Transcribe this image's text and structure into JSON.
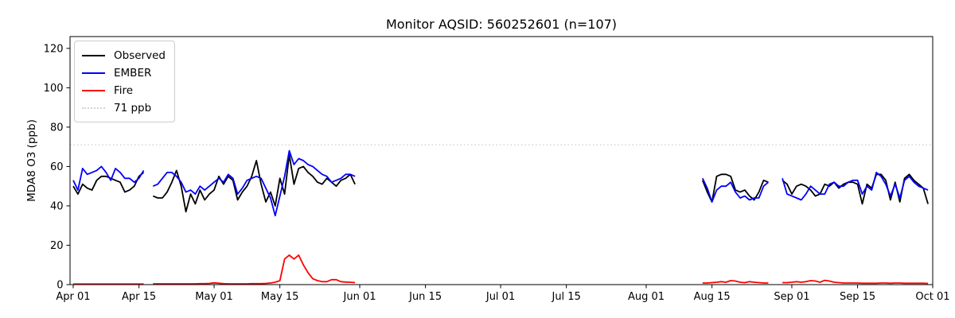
{
  "chart_data": {
    "type": "line",
    "title": "Monitor AQSID: 560252601 (n=107)",
    "ylabel": "MDA8 O3 (ppb)",
    "xlabel": "",
    "n_points": 107,
    "ylim": [
      0,
      126
    ],
    "yticks": [
      0,
      20,
      40,
      60,
      80,
      100,
      120
    ],
    "x_axis_note": "days are offsets from Apr 01; axis spans Apr 01 to Oct 01",
    "xticks": [
      {
        "day": 0,
        "label": "Apr 01"
      },
      {
        "day": 14,
        "label": "Apr 15"
      },
      {
        "day": 30,
        "label": "May 01"
      },
      {
        "day": 44,
        "label": "May 15"
      },
      {
        "day": 61,
        "label": "Jun 01"
      },
      {
        "day": 75,
        "label": "Jun 15"
      },
      {
        "day": 91,
        "label": "Jul 01"
      },
      {
        "day": 105,
        "label": "Jul 15"
      },
      {
        "day": 122,
        "label": "Aug 01"
      },
      {
        "day": 136,
        "label": "Aug 15"
      },
      {
        "day": 153,
        "label": "Sep 01"
      },
      {
        "day": 167,
        "label": "Sep 15"
      },
      {
        "day": 183,
        "label": "Oct 01"
      }
    ],
    "threshold_line": {
      "value": 71,
      "label": "71 ppb",
      "color": "#d3d3d3",
      "linestyle": "dotted"
    },
    "legend": {
      "position": "upper left",
      "entries": [
        {
          "label": "Observed",
          "color": "#000000",
          "style": "solid"
        },
        {
          "label": "EMBER",
          "color": "#0000ff",
          "style": "solid"
        },
        {
          "label": "Fire",
          "color": "#ff0000",
          "style": "solid"
        },
        {
          "label": "71 ppb",
          "color": "#d3d3d3",
          "style": "dotted"
        }
      ]
    },
    "series": [
      {
        "name": "Observed",
        "color": "#000000",
        "segments": [
          {
            "start_day": 0,
            "values": [
              50,
              46,
              51,
              49,
              48,
              53,
              55,
              55,
              54,
              53,
              52,
              47,
              48,
              50,
              55,
              57
            ]
          },
          {
            "start_day": 17,
            "values": [
              45,
              44,
              44,
              47,
              52,
              58,
              50,
              37,
              46,
              41,
              48,
              43,
              46,
              48,
              55,
              51,
              55,
              53,
              43,
              47,
              50,
              55,
              63,
              51,
              42,
              47,
              40,
              54,
              46,
              66,
              51,
              59,
              60,
              57,
              55,
              52,
              51,
              54,
              52,
              50,
              53,
              54,
              56,
              51
            ]
          },
          {
            "start_day": 134,
            "values": [
              53,
              47,
              42,
              55,
              56,
              56,
              55,
              48,
              47,
              48,
              45,
              43,
              47,
              53,
              52
            ]
          },
          {
            "start_day": 151,
            "values": [
              53,
              51,
              46,
              50,
              51,
              50,
              48,
              45,
              46,
              51,
              50,
              52,
              49,
              51,
              52,
              52,
              51,
              41,
              51,
              49,
              56,
              56,
              53,
              43,
              52,
              42,
              54,
              56,
              53,
              51,
              49,
              41
            ]
          }
        ]
      },
      {
        "name": "EMBER",
        "color": "#0000ff",
        "segments": [
          {
            "start_day": 0,
            "values": [
              53,
              48,
              59,
              56,
              57,
              58,
              60,
              57,
              53,
              59,
              57,
              54,
              54,
              52,
              54,
              58
            ]
          },
          {
            "start_day": 17,
            "values": [
              50,
              51,
              54,
              57,
              57,
              55,
              52,
              47,
              48,
              46,
              50,
              48,
              50,
              52,
              54,
              52,
              56,
              54,
              46,
              49,
              53,
              54,
              55,
              54,
              49,
              44,
              35,
              45,
              55,
              68,
              61,
              64,
              63,
              61,
              60,
              58,
              56,
              55,
              52,
              53,
              54,
              56,
              56,
              55
            ]
          },
          {
            "start_day": 134,
            "values": [
              54,
              49,
              42,
              48,
              50,
              50,
              52,
              47,
              44,
              45,
              43,
              44,
              44,
              50,
              52
            ]
          },
          {
            "start_day": 151,
            "values": [
              54,
              46,
              45,
              44,
              43,
              46,
              50,
              48,
              46,
              46,
              51,
              52,
              50,
              50,
              52,
              53,
              53,
              46,
              50,
              48,
              57,
              55,
              51,
              45,
              51,
              44,
              53,
              55,
              52,
              50,
              49,
              48
            ]
          }
        ]
      },
      {
        "name": "Fire",
        "color": "#ff0000",
        "segments": [
          {
            "start_day": 0,
            "values": [
              0.3,
              0.3,
              0.3,
              0.3,
              0.3,
              0.3,
              0.3,
              0.3,
              0.3,
              0.3,
              0.3,
              0.3,
              0.3,
              0.3,
              0.3,
              0.3
            ]
          },
          {
            "start_day": 17,
            "values": [
              0.4,
              0.4,
              0.4,
              0.4,
              0.4,
              0.4,
              0.4,
              0.4,
              0.4,
              0.4,
              0.5,
              0.5,
              0.6,
              0.9,
              0.7,
              0.5,
              0.4,
              0.4,
              0.4,
              0.4,
              0.4,
              0.5,
              0.5,
              0.5,
              0.6,
              0.8,
              1.2,
              2.0,
              13,
              15,
              13,
              15,
              10,
              6,
              3,
              2,
              1.5,
              1.5,
              2.5,
              2.5,
              1.5,
              1.3,
              1.2,
              1.0
            ]
          },
          {
            "start_day": 134,
            "values": [
              0.8,
              0.8,
              1.0,
              1.2,
              1.5,
              1.2,
              2.0,
              1.8,
              1.2,
              1.0,
              1.5,
              1.2,
              1.0,
              0.8,
              0.8
            ]
          },
          {
            "start_day": 151,
            "values": [
              1.0,
              1.0,
              1.2,
              1.5,
              1.2,
              1.5,
              2.0,
              1.8,
              1.2,
              2.2,
              1.8,
              1.2,
              1.0,
              0.8,
              0.8,
              0.8,
              0.8,
              0.7,
              0.7,
              0.7,
              0.7,
              0.8,
              0.8,
              0.7,
              0.8,
              0.8,
              0.7,
              0.7,
              0.7,
              0.7,
              0.7,
              0.6
            ]
          }
        ]
      }
    ]
  }
}
